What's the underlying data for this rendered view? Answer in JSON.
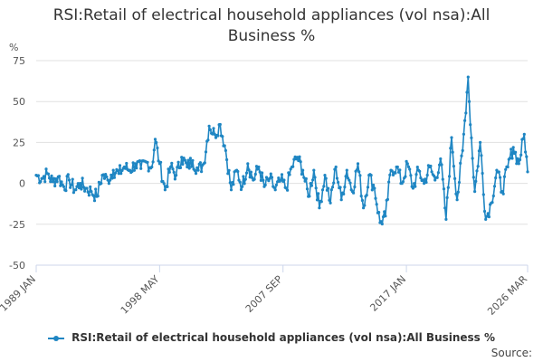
{
  "chart_data": {
    "type": "line",
    "title": "RSI:Retail of electrical household appliances (vol nsa):All Business %",
    "ylabel": "%",
    "xlabel": "",
    "ylim": [
      -50,
      75
    ],
    "yticks": [
      75,
      50,
      25,
      0,
      -25,
      -50
    ],
    "xticks": [
      "1989 JAN",
      "1998 MAY",
      "2007 SEP",
      "2017 JAN",
      "2026 MAR"
    ],
    "grid": true,
    "legend_position": "bottom",
    "color": "#1f86c3",
    "series": [
      {
        "name": "RSI:Retail of electrical household appliances (vol nsa):All Business %",
        "points": [
          [
            "1989-01",
            5
          ],
          [
            "1989-06",
            3
          ],
          [
            "1989-11",
            6
          ],
          [
            "1990-04",
            1
          ],
          [
            "1990-09",
            4
          ],
          [
            "1991-02",
            -2
          ],
          [
            "1991-07",
            2
          ],
          [
            "1991-12",
            -4
          ],
          [
            "1992-05",
            0
          ],
          [
            "1992-10",
            -3
          ],
          [
            "1993-03",
            -5
          ],
          [
            "1993-08",
            -8
          ],
          [
            "1994-01",
            5
          ],
          [
            "1994-06",
            2
          ],
          [
            "1994-11",
            8
          ],
          [
            "1995-04",
            6
          ],
          [
            "1995-09",
            10
          ],
          [
            "1996-02",
            8
          ],
          [
            "1996-07",
            12
          ],
          [
            "1996-12",
            9
          ],
          [
            "1997-05",
            13
          ],
          [
            "1997-10",
            10
          ],
          [
            "1998-01",
            27
          ],
          [
            "1998-05",
            12
          ],
          [
            "1998-10",
            -4
          ],
          [
            "1999-03",
            10
          ],
          [
            "1999-08",
            5
          ],
          [
            "2000-01",
            16
          ],
          [
            "2000-06",
            10
          ],
          [
            "2000-11",
            14
          ],
          [
            "2001-04",
            8
          ],
          [
            "2001-09",
            12
          ],
          [
            "2002-02",
            35
          ],
          [
            "2002-07",
            30
          ],
          [
            "2002-12",
            36
          ],
          [
            "2003-05",
            20
          ],
          [
            "2003-10",
            -4
          ],
          [
            "2004-03",
            8
          ],
          [
            "2004-08",
            -2
          ],
          [
            "2005-01",
            12
          ],
          [
            "2005-06",
            2
          ],
          [
            "2005-11",
            10
          ],
          [
            "2006-04",
            -2
          ],
          [
            "2006-09",
            3
          ],
          [
            "2007-02",
            -4
          ],
          [
            "2007-07",
            2
          ],
          [
            "2007-12",
            -3
          ],
          [
            "2008-05",
            10
          ],
          [
            "2008-10",
            16
          ],
          [
            "2009-03",
            8
          ],
          [
            "2009-08",
            -8
          ],
          [
            "2010-01",
            8
          ],
          [
            "2010-06",
            -15
          ],
          [
            "2010-11",
            5
          ],
          [
            "2011-04",
            -12
          ],
          [
            "2011-09",
            10
          ],
          [
            "2012-02",
            -10
          ],
          [
            "2012-07",
            8
          ],
          [
            "2012-12",
            -5
          ],
          [
            "2013-05",
            12
          ],
          [
            "2013-10",
            -15
          ],
          [
            "2014-03",
            5
          ],
          [
            "2014-08",
            -3
          ],
          [
            "2015-01",
            -24
          ],
          [
            "2015-06",
            -20
          ],
          [
            "2015-11",
            8
          ],
          [
            "2016-04",
            10
          ],
          [
            "2016-09",
            0
          ],
          [
            "2017-02",
            12
          ],
          [
            "2017-07",
            -3
          ],
          [
            "2017-12",
            8
          ],
          [
            "2018-05",
            0
          ],
          [
            "2018-10",
            10
          ],
          [
            "2019-03",
            2
          ],
          [
            "2019-08",
            15
          ],
          [
            "2020-01",
            -22
          ],
          [
            "2020-06",
            28
          ],
          [
            "2020-11",
            -10
          ],
          [
            "2021-04",
            20
          ],
          [
            "2021-09",
            65
          ],
          [
            "2021-10",
            50
          ],
          [
            "2022-03",
            -5
          ],
          [
            "2022-08",
            25
          ],
          [
            "2023-01",
            -22
          ],
          [
            "2023-06",
            -12
          ],
          [
            "2023-11",
            8
          ],
          [
            "2024-04",
            -5
          ],
          [
            "2024-09",
            10
          ],
          [
            "2025-02",
            22
          ],
          [
            "2025-07",
            12
          ],
          [
            "2025-12",
            30
          ],
          [
            "2026-03",
            7
          ]
        ]
      }
    ]
  },
  "legend": {
    "label": "RSI:Retail of electrical household appliances (vol nsa):All Business %"
  },
  "footer": {
    "source_label": "Source:"
  }
}
